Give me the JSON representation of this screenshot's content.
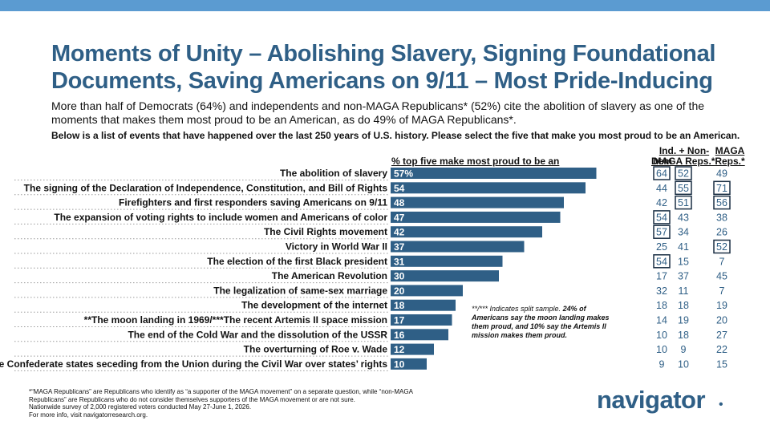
{
  "header_bar_color": "#5b9bd1",
  "title": "Moments of Unity – Abolishing Slavery, Signing Foundational Documents, Saving Americans on 9/11 – Most Pride-Inducing",
  "subtitle": "More than half of Democrats (64%) and independents and non-MAGA Republicans* (52%) cite the abolition of slavery as one of the moments that makes them most proud to be an American, as do 49% of MAGA Republicans*.",
  "question": "Below is a list of events that have happened over the last 250 years of U.S. history. Please select the five that make you most proud to be an American.",
  "chart_data": {
    "type": "bar",
    "orientation": "horizontal",
    "title": "% top five make most proud to be an American",
    "bar_color": "#2f5f86",
    "highlight_color": "#1a2f44",
    "xlim": [
      0,
      60
    ],
    "categories": [
      "The abolition of slavery",
      "The signing of the Declaration of Independence, Constitution, and Bill of Rights",
      "Firefighters and first responders saving Americans on 9/11",
      "The expansion of voting rights to include women and Americans of color",
      "The Civil Rights movement",
      "Victory in World War II",
      "The election of the first Black president",
      "The American Revolution",
      "The legalization of same-sex marriage",
      "The development of the internet",
      "**The moon landing in 1969/***The recent Artemis II space mission",
      "The end of the Cold War and the dissolution of the USSR",
      "The overturning of Roe v. Wade",
      "The Confederate states seceding from the Union during the Civil War over states’ rights"
    ],
    "values": [
      57,
      54,
      48,
      47,
      42,
      37,
      31,
      30,
      20,
      18,
      17,
      16,
      12,
      10
    ],
    "value_labels": [
      "57%",
      "54",
      "48",
      "47",
      "42",
      "37",
      "31",
      "30",
      "20",
      "18",
      "17",
      "16",
      "12",
      "10"
    ],
    "subgroups": [
      {
        "name": "Dem",
        "values": [
          64,
          44,
          42,
          54,
          57,
          25,
          54,
          17,
          32,
          18,
          14,
          10,
          10,
          9
        ],
        "boxed": [
          0,
          3,
          4,
          6
        ]
      },
      {
        "name": "Ind. + Non-MAGA Reps.*",
        "values": [
          52,
          55,
          51,
          43,
          34,
          41,
          15,
          37,
          11,
          18,
          19,
          18,
          9,
          10
        ],
        "boxed": [
          0,
          1,
          2
        ]
      },
      {
        "name": "MAGA Reps.*",
        "values": [
          49,
          71,
          56,
          38,
          26,
          52,
          7,
          45,
          7,
          19,
          20,
          27,
          22,
          15
        ],
        "boxed": [
          1,
          2,
          5
        ]
      }
    ]
  },
  "column_headers": {
    "dem": "Dem",
    "ind": "Ind. + Non- MAGA Reps.*",
    "maga": "MAGA Reps.*"
  },
  "note": {
    "prefix": "**/*** Indicates split sample. ",
    "bold": "24% of Americans say the moon landing makes them proud, and 10% say the Artemis II mission makes them proud."
  },
  "footnotes": [
    "*“MAGA Republicans” are Republicans who identify as “a supporter of the MAGA movement” on a separate question, while “non-MAGA Republicans” are Republicans who do not consider themselves supporters of the MAGA movement or are not sure.",
    "Nationwide survey of 2,000 registered voters conducted May 27-June 1, 2026.",
    "For more info, visit navigatorresearch.org."
  ],
  "logo": "navigator",
  "logo_mark": "•"
}
